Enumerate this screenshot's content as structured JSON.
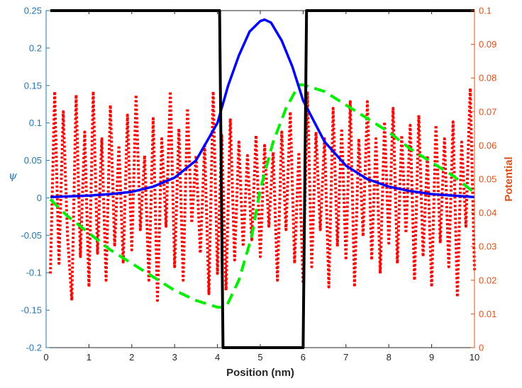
{
  "chart_data": {
    "type": "line",
    "xlabel": "Position (nm)",
    "ylabel_left": "ψ",
    "ylabel_right": "Potential",
    "xlim": [
      0,
      10
    ],
    "ylim_left": [
      -0.2,
      0.25
    ],
    "ylim_right": [
      0,
      0.1
    ],
    "x_ticks": [
      0,
      1,
      2,
      3,
      4,
      5,
      6,
      7,
      8,
      9,
      10
    ],
    "y_left_ticks": [
      -0.2,
      -0.15,
      -0.1,
      -0.05,
      0,
      0.05,
      0.1,
      0.15,
      0.2,
      0.25
    ],
    "y_right_ticks": [
      0,
      0.01,
      0.02,
      0.03,
      0.04,
      0.05,
      0.06,
      0.07,
      0.08,
      0.09,
      0.1
    ],
    "colors": {
      "left_axis": "#1f77b4",
      "right_axis": "#d95319",
      "wavefunction": "#0000ff",
      "potential_well": "#000000",
      "noisy_potential": "#ff0000",
      "smoothed_potential": "#00ee00"
    },
    "series": [
      {
        "axis": "right",
        "style": "solid-black",
        "x": [
          0.1,
          4.05,
          4.13,
          6.0,
          6.08,
          10
        ],
        "y": [
          0.1,
          0.1,
          0,
          0,
          0.1,
          0.1
        ]
      },
      {
        "axis": "left",
        "style": "solid-blue",
        "x": [
          0.1,
          0.5,
          1,
          1.5,
          2,
          2.5,
          3,
          3.5,
          4,
          4.25,
          4.5,
          4.75,
          5,
          5.1,
          5.25,
          5.5,
          5.75,
          6,
          6.5,
          7,
          7.5,
          8,
          8.5,
          9,
          9.5,
          10
        ],
        "y": [
          0.001,
          0.002,
          0.003,
          0.005,
          0.008,
          0.015,
          0.027,
          0.05,
          0.1,
          0.15,
          0.19,
          0.222,
          0.236,
          0.238,
          0.234,
          0.21,
          0.175,
          0.13,
          0.075,
          0.043,
          0.025,
          0.015,
          0.009,
          0.005,
          0.003,
          0.001
        ]
      },
      {
        "axis": "right",
        "style": "dashed-green",
        "x": [
          0.1,
          0.5,
          1,
          1.5,
          2,
          2.5,
          3,
          3.5,
          4,
          4.2,
          4.5,
          4.8,
          5,
          5.3,
          5.6,
          5.9,
          6,
          6.5,
          7,
          7.5,
          8,
          8.5,
          9,
          9.5,
          10
        ],
        "y": [
          0.044,
          0.039,
          0.034,
          0.029,
          0.025,
          0.021,
          0.017,
          0.014,
          0.012,
          0.012,
          0.02,
          0.033,
          0.047,
          0.061,
          0.071,
          0.078,
          0.078,
          0.076,
          0.072,
          0.068,
          0.064,
          0.059,
          0.055,
          0.051,
          0.046
        ]
      },
      {
        "axis": "right",
        "style": "dotted-red",
        "x": [
          0.1,
          0.2,
          0.3,
          0.4,
          0.5,
          0.6,
          0.7,
          0.8,
          0.9,
          1.0,
          1.1,
          1.2,
          1.3,
          1.4,
          1.5,
          1.6,
          1.7,
          1.8,
          1.9,
          2.0,
          2.1,
          2.2,
          2.3,
          2.4,
          2.5,
          2.6,
          2.7,
          2.8,
          2.9,
          3.0,
          3.1,
          3.2,
          3.3,
          3.4,
          3.5,
          3.6,
          3.7,
          3.8,
          3.9,
          4.0,
          4.1,
          4.2,
          4.3,
          4.4,
          4.5,
          4.6,
          4.7,
          4.8,
          4.9,
          5.0,
          5.1,
          5.2,
          5.3,
          5.4,
          5.5,
          5.6,
          5.7,
          5.8,
          5.9,
          6.0,
          6.1,
          6.2,
          6.3,
          6.4,
          6.5,
          6.6,
          6.7,
          6.8,
          6.9,
          7.0,
          7.1,
          7.2,
          7.3,
          7.4,
          7.5,
          7.6,
          7.7,
          7.8,
          7.9,
          8.0,
          8.1,
          8.2,
          8.3,
          8.4,
          8.5,
          8.6,
          8.7,
          8.8,
          8.9,
          9.0,
          9.1,
          9.2,
          9.3,
          9.4,
          9.5,
          9.6,
          9.7,
          9.8,
          9.9,
          10.0
        ],
        "y": [
          0.022,
          0.076,
          0.025,
          0.07,
          0.033,
          0.014,
          0.075,
          0.027,
          0.064,
          0.018,
          0.076,
          0.028,
          0.062,
          0.02,
          0.072,
          0.03,
          0.06,
          0.025,
          0.069,
          0.029,
          0.075,
          0.035,
          0.057,
          0.02,
          0.068,
          0.014,
          0.062,
          0.036,
          0.076,
          0.024,
          0.065,
          0.02,
          0.071,
          0.037,
          0.057,
          0.028,
          0.06,
          0.016,
          0.076,
          0.022,
          0.063,
          0.017,
          0.068,
          0.026,
          0.061,
          0.03,
          0.057,
          0.032,
          0.063,
          0.027,
          0.06,
          0.036,
          0.058,
          0.02,
          0.064,
          0.035,
          0.07,
          0.025,
          0.058,
          0.019,
          0.076,
          0.024,
          0.064,
          0.035,
          0.062,
          0.018,
          0.071,
          0.03,
          0.065,
          0.026,
          0.073,
          0.018,
          0.062,
          0.033,
          0.073,
          0.026,
          0.062,
          0.022,
          0.067,
          0.031,
          0.071,
          0.025,
          0.063,
          0.034,
          0.066,
          0.02,
          0.069,
          0.027,
          0.057,
          0.018,
          0.066,
          0.031,
          0.062,
          0.024,
          0.067,
          0.015,
          0.061,
          0.036,
          0.077,
          0.023
        ]
      }
    ]
  }
}
